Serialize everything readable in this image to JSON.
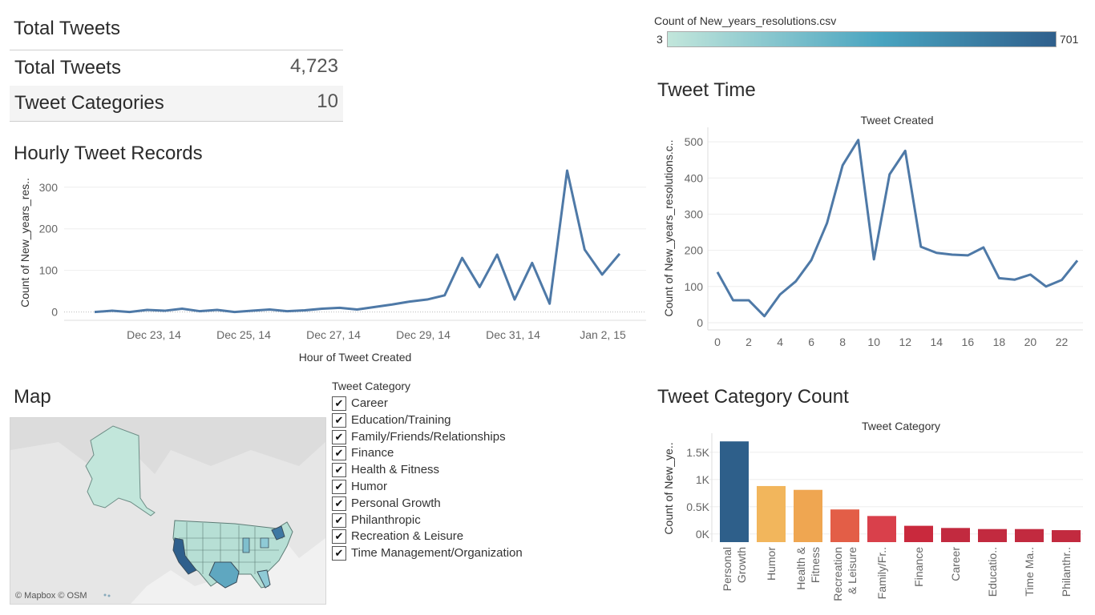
{
  "kpi": {
    "header": "Total Tweets",
    "rows": [
      {
        "label": "Total Tweets",
        "value": "4,723"
      },
      {
        "label": "Tweet Categories",
        "value": "10"
      }
    ]
  },
  "color_legend": {
    "title": "Count of New_years_resolutions.csv",
    "min": "3",
    "max": "701",
    "color_low": "#c2e6db",
    "color_mid": "#49a4c0",
    "color_high": "#2f5f8c"
  },
  "hourly": {
    "title": "Hourly Tweet Records",
    "chart_data": {
      "type": "line",
      "title": "",
      "ylabel": "Count of New_years_res..",
      "xlabel": "Hour of Tweet Created",
      "x_tick_labels": [
        "Dec 23, 14",
        "Dec 25, 14",
        "Dec 27, 14",
        "Dec 29, 14",
        "Dec 31, 14",
        "Jan 2, 15"
      ],
      "y_ticks": [
        0,
        100,
        200,
        300
      ],
      "ylim": [
        -20,
        340
      ],
      "color": "#4e79a7",
      "series": [
        {
          "x": [
            "Dec 22, 14 00",
            "Dec 22, 14 06",
            "Dec 22, 14 12",
            "Dec 22, 14 18",
            "Dec 23, 14 00",
            "Dec 23, 14 12",
            "Dec 24, 14 00",
            "Dec 24, 14 12",
            "Dec 25, 14 00",
            "Dec 25, 14 12",
            "Dec 26, 14 00",
            "Dec 26, 14 12",
            "Dec 27, 14 00",
            "Dec 27, 14 12",
            "Dec 28, 14 00",
            "Dec 28, 14 12",
            "Dec 29, 14 00",
            "Dec 29, 14 12",
            "Dec 30, 14 00",
            "Dec 30, 14 12",
            "Dec 31, 14 00",
            "Dec 31, 14 06",
            "Dec 31, 14 12",
            "Dec 31, 14 18",
            "Jan 1, 15 00",
            "Jan 1, 15 06",
            "Jan 1, 15 12",
            "Jan 1, 15 18",
            "Jan 2, 15 00",
            "Jan 2, 15 12",
            "Jan 2, 15 18"
          ],
          "y": [
            0,
            3,
            0,
            5,
            3,
            8,
            2,
            5,
            0,
            3,
            6,
            2,
            4,
            8,
            10,
            6,
            12,
            18,
            25,
            30,
            40,
            130,
            60,
            138,
            30,
            118,
            20,
            340,
            150,
            90,
            140
          ]
        }
      ]
    }
  },
  "tweet_time": {
    "title": "Tweet Time",
    "chart_data": {
      "type": "line",
      "title": "Tweet Created",
      "ylabel": "Count of New_years_resolutions.c..",
      "xlabel": "",
      "x": [
        0,
        1,
        2,
        3,
        4,
        5,
        6,
        7,
        8,
        9,
        10,
        11,
        12,
        13,
        14,
        15,
        16,
        17,
        18,
        19,
        20,
        21,
        22,
        23
      ],
      "values": [
        140,
        62,
        62,
        18,
        78,
        114,
        173,
        275,
        435,
        505,
        175,
        410,
        475,
        210,
        193,
        188,
        186,
        208,
        123,
        119,
        133,
        100,
        118,
        172
      ],
      "x_ticks": [
        0,
        2,
        4,
        6,
        8,
        10,
        12,
        14,
        16,
        18,
        20,
        22
      ],
      "y_ticks": [
        0,
        100,
        200,
        300,
        400,
        500
      ],
      "ylim": [
        -20,
        540
      ],
      "color": "#4e79a7"
    }
  },
  "map": {
    "title": "Map",
    "credit": "© Mapbox © OSM"
  },
  "category_filter": {
    "title": "Tweet Category",
    "items": [
      {
        "label": "Career",
        "checked": true
      },
      {
        "label": "Education/Training",
        "checked": true
      },
      {
        "label": "Family/Friends/Relationships",
        "checked": true
      },
      {
        "label": "Finance",
        "checked": true
      },
      {
        "label": "Health & Fitness",
        "checked": true
      },
      {
        "label": "Humor",
        "checked": true
      },
      {
        "label": "Personal Growth",
        "checked": true
      },
      {
        "label": "Philanthropic",
        "checked": true
      },
      {
        "label": "Recreation & Leisure",
        "checked": true
      },
      {
        "label": "Time Management/Organization",
        "checked": true
      }
    ],
    "check_glyph": "✔"
  },
  "category_count": {
    "title": "Tweet Category Count",
    "chart_data": {
      "type": "bar",
      "title": "Tweet Category",
      "ylabel": "Count of New_ye..",
      "y_ticks": [
        0,
        500,
        1000,
        1500
      ],
      "y_tick_labels": [
        "0K",
        "0.5K",
        "1K",
        "1.5K"
      ],
      "ylim": [
        -150,
        1850
      ],
      "categories": [
        [
          "Personal",
          "Growth"
        ],
        [
          "Humor"
        ],
        [
          "Health &",
          "Fitness"
        ],
        [
          "Recreation",
          "& Leisure"
        ],
        [
          "Family/Fr.."
        ],
        [
          "Finance"
        ],
        [
          "Career"
        ],
        [
          "Educatio.."
        ],
        [
          "Time Ma.."
        ],
        [
          "Philanthr.."
        ]
      ],
      "values": [
        1700,
        880,
        810,
        450,
        330,
        150,
        110,
        90,
        90,
        70
      ],
      "colors": [
        "#2e5f8a",
        "#f2b65c",
        "#efa651",
        "#e35e47",
        "#d9404b",
        "#c9293d",
        "#c22a3f",
        "#c22a3f",
        "#c22a3f",
        "#c22a3f"
      ]
    }
  }
}
